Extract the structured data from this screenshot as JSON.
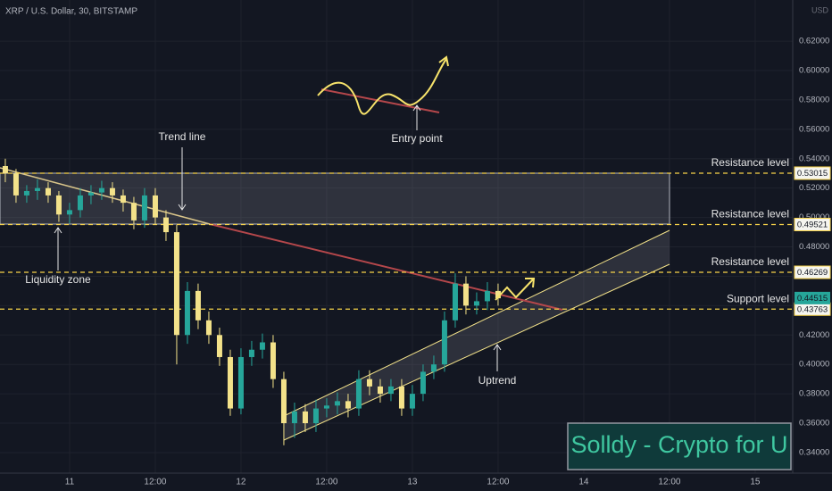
{
  "chart_data": {
    "type": "candlestick",
    "title": "XRP / U.S. Dollar, 30, BITSTAMP",
    "y_unit": "USD",
    "x": [
      10.625,
      10.6875,
      10.75,
      10.8125,
      10.875,
      10.9375,
      11,
      11.0625,
      11.125,
      11.1875,
      11.25,
      11.3125,
      11.375,
      11.4375,
      11.5,
      11.5625,
      11.625,
      11.6875,
      11.75,
      11.8125,
      11.875,
      11.9375,
      12,
      12.0625,
      12.125,
      12.1875,
      12.25,
      12.3125,
      12.375,
      12.4375,
      12.5,
      12.5625,
      12.625,
      12.6875,
      12.75,
      12.8125,
      12.875,
      12.9375,
      13,
      13.0625,
      13.125,
      13.1875,
      13.25,
      13.3125,
      13.375,
      13.4375,
      13.5
    ],
    "open": [
      0.535,
      0.53,
      0.515,
      0.518,
      0.52,
      0.515,
      0.502,
      0.505,
      0.515,
      0.517,
      0.52,
      0.515,
      0.51,
      0.498,
      0.515,
      0.5,
      0.49,
      0.42,
      0.45,
      0.43,
      0.42,
      0.405,
      0.37,
      0.405,
      0.41,
      0.415,
      0.39,
      0.36,
      0.368,
      0.36,
      0.37,
      0.372,
      0.375,
      0.37,
      0.39,
      0.385,
      0.38,
      0.385,
      0.37,
      0.38,
      0.395,
      0.4,
      0.43,
      0.455,
      0.44,
      0.443,
      0.45
    ],
    "high": [
      0.54,
      0.533,
      0.522,
      0.526,
      0.524,
      0.518,
      0.51,
      0.52,
      0.522,
      0.525,
      0.524,
      0.519,
      0.514,
      0.52,
      0.52,
      0.505,
      0.495,
      0.456,
      0.455,
      0.436,
      0.425,
      0.41,
      0.411,
      0.416,
      0.421,
      0.42,
      0.395,
      0.374,
      0.373,
      0.376,
      0.377,
      0.381,
      0.38,
      0.396,
      0.396,
      0.39,
      0.39,
      0.39,
      0.386,
      0.4,
      0.406,
      0.436,
      0.462,
      0.46,
      0.449,
      0.456,
      0.455
    ],
    "low": [
      0.524,
      0.51,
      0.51,
      0.512,
      0.51,
      0.497,
      0.496,
      0.5,
      0.509,
      0.512,
      0.51,
      0.504,
      0.492,
      0.493,
      0.495,
      0.484,
      0.4,
      0.414,
      0.424,
      0.414,
      0.399,
      0.365,
      0.366,
      0.399,
      0.404,
      0.384,
      0.345,
      0.35,
      0.354,
      0.354,
      0.364,
      0.366,
      0.364,
      0.365,
      0.379,
      0.374,
      0.375,
      0.365,
      0.365,
      0.375,
      0.39,
      0.395,
      0.425,
      0.434,
      0.434,
      0.437,
      0.44
    ],
    "close": [
      0.53,
      0.515,
      0.518,
      0.52,
      0.515,
      0.502,
      0.505,
      0.515,
      0.517,
      0.52,
      0.515,
      0.51,
      0.498,
      0.515,
      0.5,
      0.49,
      0.42,
      0.45,
      0.43,
      0.42,
      0.405,
      0.37,
      0.405,
      0.41,
      0.415,
      0.39,
      0.36,
      0.368,
      0.36,
      0.37,
      0.372,
      0.375,
      0.37,
      0.39,
      0.385,
      0.38,
      0.385,
      0.37,
      0.38,
      0.395,
      0.4,
      0.43,
      0.455,
      0.44,
      0.443,
      0.45,
      0.445
    ],
    "up_color": "#26a69a",
    "down_color": "#f3e28a",
    "xlim": [
      10.594,
      15.219
    ],
    "xticks": [
      11,
      {
        "value": 11.5,
        "label": "12:00"
      },
      12,
      {
        "value": 12.5,
        "label": "12:00"
      },
      13,
      {
        "value": 13.5,
        "label": "12:00"
      },
      14,
      {
        "value": 14.5,
        "label": "12:00"
      },
      15
    ],
    "ylim": [
      0.326,
      0.648
    ],
    "yticks": [
      {
        "value": 0.34,
        "label": "0.34000"
      },
      {
        "value": 0.36,
        "label": "0.36000"
      },
      {
        "value": 0.38,
        "label": "0.38000"
      },
      {
        "value": 0.4,
        "label": "0.40000"
      },
      {
        "value": 0.42,
        "label": "0.42000"
      },
      {
        "value": 0.44,
        "label": "0.44000"
      },
      {
        "value": 0.46,
        "label": "0.46000"
      },
      {
        "value": 0.48,
        "label": "0.48000"
      },
      {
        "value": 0.5,
        "label": "0.50000"
      },
      {
        "value": 0.52,
        "label": "0.52000"
      },
      {
        "value": 0.54,
        "label": "0.54000"
      },
      {
        "value": 0.56,
        "label": "0.56000"
      },
      {
        "value": 0.58,
        "label": "0.58000"
      },
      {
        "value": 0.6,
        "label": "0.60000"
      },
      {
        "value": 0.62,
        "label": "0.62000"
      }
    ],
    "grid": true,
    "levels": [
      {
        "label": "Resistance level",
        "value": 0.53015
      },
      {
        "label": "Resistance level",
        "value": 0.49521
      },
      {
        "label": "Resistance level",
        "value": 0.46269
      },
      {
        "label": "Support level",
        "value": 0.43763
      }
    ],
    "level_color": "#f7d34a",
    "last_price": 0.44515,
    "annotations": [
      "Trend line",
      "Liquidity zone",
      "Entry point",
      "Uptrend"
    ],
    "watermark": "Solldy - Crypto for U"
  }
}
